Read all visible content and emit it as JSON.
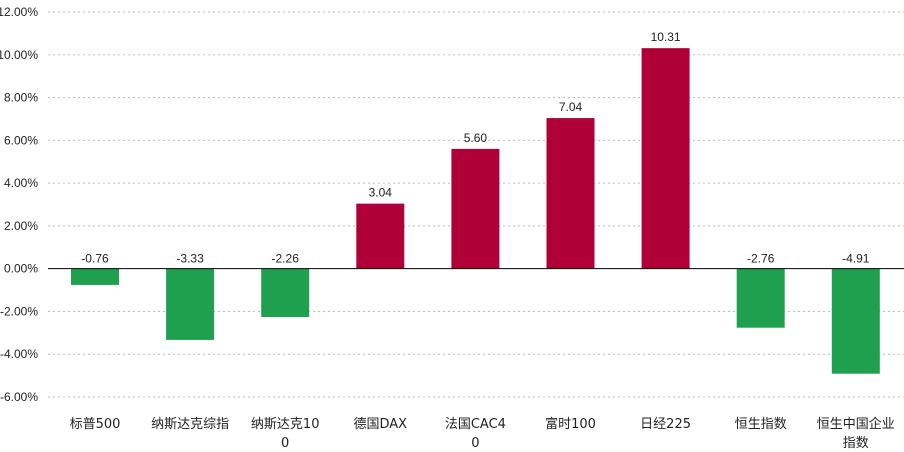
{
  "chart_data": {
    "type": "bar",
    "categories": [
      "标普500",
      "纳斯达克综指",
      "纳斯达克100",
      "德国DAX",
      "法国CAC40",
      "富时100",
      "日经225",
      "恒生指数",
      "恒生中国企业指数"
    ],
    "values": [
      -0.76,
      -3.33,
      -2.26,
      3.04,
      5.6,
      7.04,
      10.31,
      -2.76,
      -4.91
    ],
    "data_labels": [
      "-0.76",
      "-3.33",
      "-2.26",
      "3.04",
      "5.60",
      "7.04",
      "10.31",
      "-2.76",
      "-4.91"
    ],
    "y_ticks": [
      {
        "value": 12,
        "label": "12.00%"
      },
      {
        "value": 10,
        "label": "10.00%"
      },
      {
        "value": 8,
        "label": "8.00%"
      },
      {
        "value": 6,
        "label": "6.00%"
      },
      {
        "value": 4,
        "label": "4.00%"
      },
      {
        "value": 2,
        "label": "2.00%"
      },
      {
        "value": 0,
        "label": "0.00%"
      },
      {
        "value": -2,
        "label": "-2.00%"
      },
      {
        "value": -4,
        "label": "-4.00%"
      },
      {
        "value": -6,
        "label": "-6.00%"
      }
    ],
    "ylim": [
      -6,
      12
    ],
    "grid": true,
    "grid_style": "dotted horizontal",
    "legend": "none",
    "colors": {
      "positive": "#b0003a",
      "negative": "#1fa04f",
      "grid": "#bdbdbd",
      "axis": "#000000"
    }
  }
}
